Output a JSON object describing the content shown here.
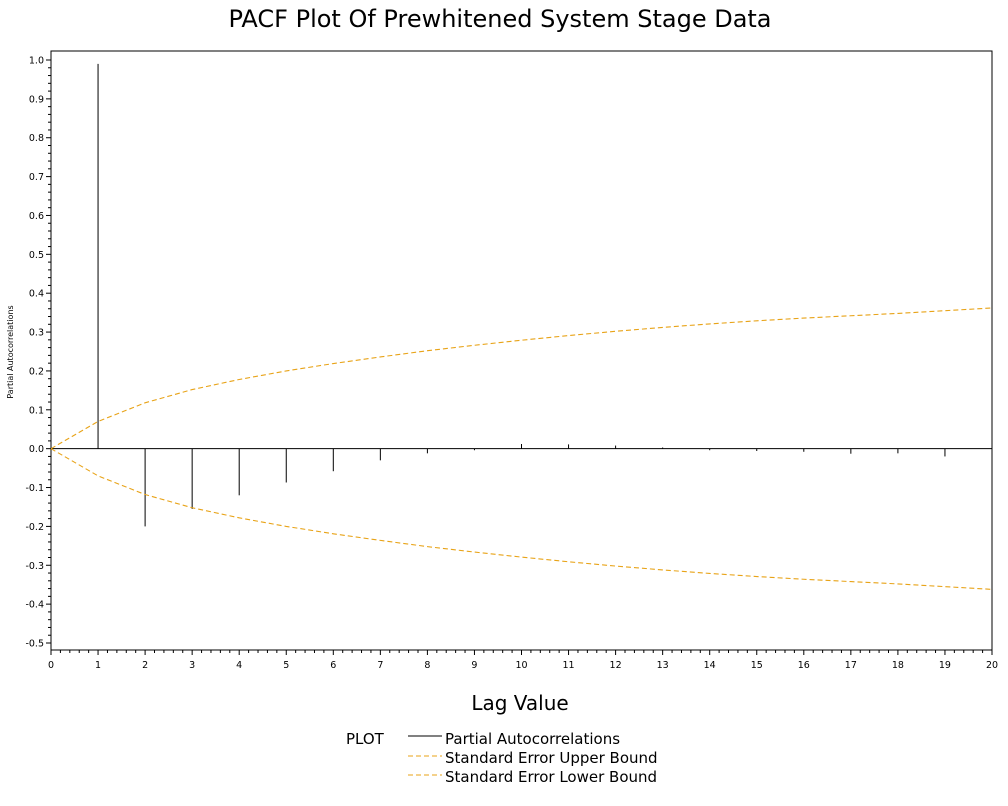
{
  "chart_data": {
    "type": "bar",
    "title": "PACF Plot Of Prewhitened System Stage Data",
    "xlabel": "Lag Value",
    "ylabel": "Partial Autocorrelations",
    "xlim": [
      0,
      20
    ],
    "ylim": [
      -0.5,
      1.0
    ],
    "x_ticks": [
      0,
      1,
      2,
      3,
      4,
      5,
      6,
      7,
      8,
      9,
      10,
      11,
      12,
      13,
      14,
      15,
      16,
      17,
      18,
      19,
      20
    ],
    "x_tick_labels": [
      "0",
      "1",
      "2",
      "3",
      "4",
      "5",
      "6",
      "7",
      "8",
      "9",
      "10",
      "11",
      "12",
      "13",
      "14",
      "15",
      "16",
      "17",
      "18",
      "19",
      "20"
    ],
    "y_ticks": [
      -0.5,
      -0.4,
      -0.3,
      -0.2,
      -0.1,
      0.0,
      0.1,
      0.2,
      0.3,
      0.4,
      0.5,
      0.6,
      0.7,
      0.8,
      0.9,
      1.0
    ],
    "y_tick_labels": [
      "-0.5",
      "-0.4",
      "-0.3",
      "-0.2",
      "-0.1",
      "0.0",
      "0.1",
      "0.2",
      "0.3",
      "0.4",
      "0.5",
      "0.6",
      "0.7",
      "0.8",
      "0.9",
      "1.0"
    ],
    "grid": false,
    "legend_title": "PLOT",
    "legend_position": "bottom",
    "series": [
      {
        "name": "Partial Autocorrelations",
        "type": "needle",
        "color": "#000000",
        "x": [
          1,
          2,
          3,
          4,
          5,
          6,
          7,
          8,
          9,
          10,
          11,
          12,
          13,
          14,
          15,
          16,
          17,
          18,
          19,
          20
        ],
        "values": [
          0.99,
          -0.2,
          -0.155,
          -0.12,
          -0.087,
          -0.058,
          -0.03,
          -0.012,
          -0.004,
          0.012,
          0.011,
          0.008,
          0.003,
          -0.004,
          -0.006,
          -0.008,
          -0.013,
          -0.012,
          -0.02,
          -0.03
        ]
      },
      {
        "name": "Standard Error Upper Bound",
        "type": "line",
        "style": "dashed",
        "color": "#E8A317",
        "x": [
          0,
          1,
          2,
          3,
          4,
          5,
          6,
          7,
          8,
          9,
          10,
          11,
          12,
          13,
          14,
          15,
          16,
          17,
          18,
          19,
          20
        ],
        "values": [
          0.0,
          0.07,
          0.118,
          0.152,
          0.178,
          0.2,
          0.219,
          0.236,
          0.252,
          0.266,
          0.279,
          0.291,
          0.302,
          0.312,
          0.321,
          0.329,
          0.336,
          0.342,
          0.348,
          0.355,
          0.362
        ]
      },
      {
        "name": "Standard Error Lower Bound",
        "type": "line",
        "style": "dashed",
        "color": "#E8A317",
        "x": [
          0,
          1,
          2,
          3,
          4,
          5,
          6,
          7,
          8,
          9,
          10,
          11,
          12,
          13,
          14,
          15,
          16,
          17,
          18,
          19,
          20
        ],
        "values": [
          0.0,
          -0.07,
          -0.118,
          -0.152,
          -0.178,
          -0.2,
          -0.219,
          -0.236,
          -0.252,
          -0.266,
          -0.279,
          -0.291,
          -0.302,
          -0.312,
          -0.321,
          -0.329,
          -0.336,
          -0.342,
          -0.348,
          -0.355,
          -0.362
        ]
      }
    ]
  }
}
